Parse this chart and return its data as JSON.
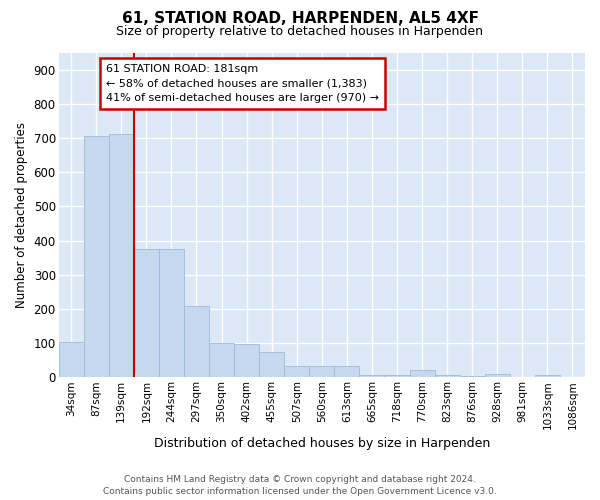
{
  "title": "61, STATION ROAD, HARPENDEN, AL5 4XF",
  "subtitle": "Size of property relative to detached houses in Harpenden",
  "xlabel": "Distribution of detached houses by size in Harpenden",
  "ylabel": "Number of detached properties",
  "categories": [
    "34sqm",
    "87sqm",
    "139sqm",
    "192sqm",
    "244sqm",
    "297sqm",
    "350sqm",
    "402sqm",
    "455sqm",
    "507sqm",
    "560sqm",
    "613sqm",
    "665sqm",
    "718sqm",
    "770sqm",
    "823sqm",
    "876sqm",
    "928sqm",
    "981sqm",
    "1033sqm",
    "1086sqm"
  ],
  "values": [
    103,
    707,
    712,
    375,
    375,
    208,
    100,
    97,
    73,
    33,
    32,
    33,
    8,
    8,
    22,
    8,
    5,
    11,
    0,
    8,
    0
  ],
  "bar_color": "#c5d8ee",
  "bar_edge_color": "#a0bcd8",
  "plot_bg_color": "#dce8f5",
  "fig_bg_color": "#ffffff",
  "grid_color": "#ffffff",
  "property_line_color": "#cc0000",
  "annotation_line1": "61 STATION ROAD: 181sqm",
  "annotation_line2": "← 58% of detached houses are smaller (1,383)",
  "annotation_line3": "41% of semi-detached houses are larger (970) →",
  "annotation_box_edge_color": "#cc0000",
  "ylim": [
    0,
    950
  ],
  "yticks": [
    0,
    100,
    200,
    300,
    400,
    500,
    600,
    700,
    800,
    900
  ],
  "footer_line1": "Contains HM Land Registry data © Crown copyright and database right 2024.",
  "footer_line2": "Contains public sector information licensed under the Open Government Licence v3.0."
}
